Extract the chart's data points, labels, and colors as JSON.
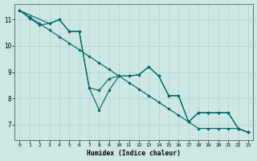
{
  "xlabel": "Humidex (Indice chaleur)",
  "bg_color": "#cde8e4",
  "grid_color": "#b0d5cf",
  "line_color": "#006b6b",
  "xlim": [
    -0.5,
    23.5
  ],
  "ylim": [
    6.4,
    11.6
  ],
  "xticks": [
    0,
    1,
    2,
    3,
    4,
    5,
    6,
    7,
    8,
    9,
    10,
    11,
    12,
    13,
    14,
    15,
    16,
    17,
    18,
    19,
    20,
    21,
    22,
    23
  ],
  "yticks": [
    7,
    8,
    9,
    10,
    11
  ],
  "line1_x": [
    0,
    1,
    2,
    3,
    4,
    5,
    6,
    7,
    8,
    9,
    10,
    11,
    12,
    13,
    14,
    15,
    16,
    17,
    18,
    19,
    20,
    21,
    22,
    23
  ],
  "line1_y": [
    11.35,
    11.1,
    10.85,
    10.6,
    10.35,
    10.1,
    9.85,
    9.6,
    9.35,
    9.1,
    8.85,
    8.6,
    8.35,
    8.1,
    7.85,
    7.6,
    7.35,
    7.1,
    6.85,
    6.85,
    6.85,
    6.85,
    6.85,
    6.7
  ],
  "line2_x": [
    0,
    1,
    2,
    3,
    4,
    5,
    6,
    7,
    8,
    9,
    10,
    11,
    12,
    13,
    14,
    15,
    16,
    17,
    18,
    19,
    20,
    21,
    22,
    23
  ],
  "line2_y": [
    11.35,
    11.05,
    10.8,
    10.85,
    11.0,
    10.55,
    10.55,
    8.4,
    8.3,
    8.75,
    8.85,
    8.85,
    8.9,
    9.2,
    8.85,
    8.1,
    8.1,
    7.1,
    7.45,
    7.45,
    7.45,
    7.45,
    6.85,
    6.7
  ],
  "line3_x": [
    0,
    3,
    4,
    5,
    6,
    7,
    8,
    9,
    10,
    11,
    12,
    13,
    14,
    15,
    16,
    17,
    18,
    19,
    20,
    21,
    22,
    23
  ],
  "line3_y": [
    11.35,
    10.85,
    11.0,
    10.55,
    10.55,
    8.4,
    7.55,
    8.3,
    8.85,
    8.85,
    8.9,
    9.2,
    8.85,
    8.1,
    8.1,
    7.1,
    7.45,
    7.45,
    7.45,
    7.45,
    6.85,
    6.7
  ]
}
